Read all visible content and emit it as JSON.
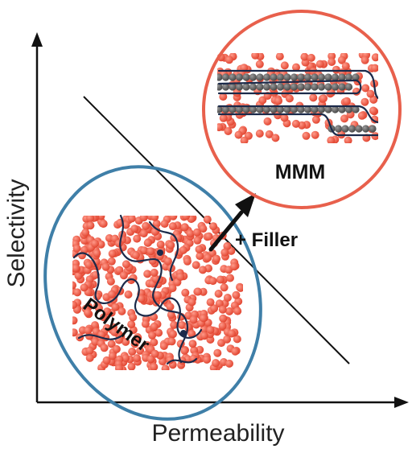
{
  "axes": {
    "x_label": "Permeability",
    "y_label": "Selectivity"
  },
  "labels": {
    "polymer": "Polymer",
    "mmm": "MMM",
    "filler": "+ Filler"
  },
  "colors": {
    "particle": "#ee5a45",
    "particle_highlight": "#ff8a78",
    "polymer_ring": "#3f7fa8",
    "mmm_ring": "#e8604c",
    "chain": "#1b2a4a",
    "filler_sheet": "#5a5a5a",
    "axis": "#111111"
  },
  "icons": {
    "arrow": "arrow-up-right-icon"
  }
}
